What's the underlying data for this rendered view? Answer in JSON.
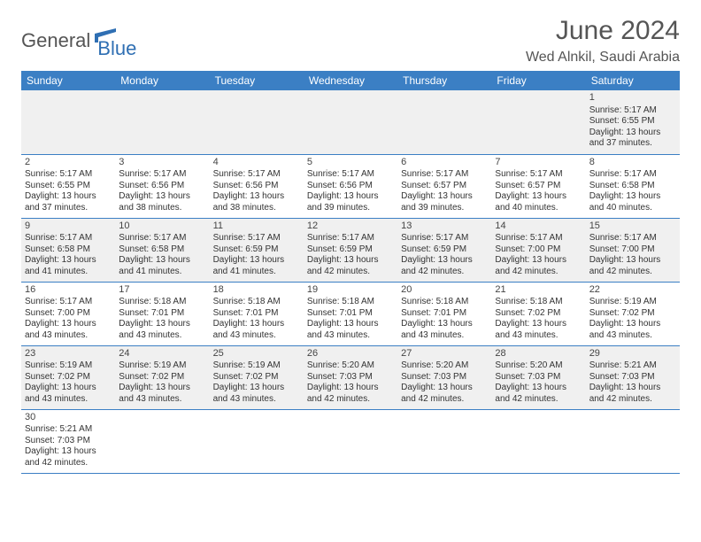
{
  "logo": {
    "part1": "General",
    "part2": "Blue"
  },
  "title": "June 2024",
  "subtitle": "Wed Alnkil, Saudi Arabia",
  "colors": {
    "header_bg": "#3b7fc4",
    "header_text": "#ffffff",
    "row_alt_bg": "#f0f0f0",
    "border": "#3b7fc4",
    "title_color": "#555555",
    "logo_blue": "#2f6fb3"
  },
  "typography": {
    "title_fontsize": 30,
    "subtitle_fontsize": 16,
    "header_fontsize": 12,
    "cell_fontsize": 10
  },
  "day_headers": [
    "Sunday",
    "Monday",
    "Tuesday",
    "Wednesday",
    "Thursday",
    "Friday",
    "Saturday"
  ],
  "weeks": [
    [
      null,
      null,
      null,
      null,
      null,
      null,
      {
        "n": "1",
        "sr": "Sunrise: 5:17 AM",
        "ss": "Sunset: 6:55 PM",
        "d1": "Daylight: 13 hours",
        "d2": "and 37 minutes."
      }
    ],
    [
      {
        "n": "2",
        "sr": "Sunrise: 5:17 AM",
        "ss": "Sunset: 6:55 PM",
        "d1": "Daylight: 13 hours",
        "d2": "and 37 minutes."
      },
      {
        "n": "3",
        "sr": "Sunrise: 5:17 AM",
        "ss": "Sunset: 6:56 PM",
        "d1": "Daylight: 13 hours",
        "d2": "and 38 minutes."
      },
      {
        "n": "4",
        "sr": "Sunrise: 5:17 AM",
        "ss": "Sunset: 6:56 PM",
        "d1": "Daylight: 13 hours",
        "d2": "and 38 minutes."
      },
      {
        "n": "5",
        "sr": "Sunrise: 5:17 AM",
        "ss": "Sunset: 6:56 PM",
        "d1": "Daylight: 13 hours",
        "d2": "and 39 minutes."
      },
      {
        "n": "6",
        "sr": "Sunrise: 5:17 AM",
        "ss": "Sunset: 6:57 PM",
        "d1": "Daylight: 13 hours",
        "d2": "and 39 minutes."
      },
      {
        "n": "7",
        "sr": "Sunrise: 5:17 AM",
        "ss": "Sunset: 6:57 PM",
        "d1": "Daylight: 13 hours",
        "d2": "and 40 minutes."
      },
      {
        "n": "8",
        "sr": "Sunrise: 5:17 AM",
        "ss": "Sunset: 6:58 PM",
        "d1": "Daylight: 13 hours",
        "d2": "and 40 minutes."
      }
    ],
    [
      {
        "n": "9",
        "sr": "Sunrise: 5:17 AM",
        "ss": "Sunset: 6:58 PM",
        "d1": "Daylight: 13 hours",
        "d2": "and 41 minutes."
      },
      {
        "n": "10",
        "sr": "Sunrise: 5:17 AM",
        "ss": "Sunset: 6:58 PM",
        "d1": "Daylight: 13 hours",
        "d2": "and 41 minutes."
      },
      {
        "n": "11",
        "sr": "Sunrise: 5:17 AM",
        "ss": "Sunset: 6:59 PM",
        "d1": "Daylight: 13 hours",
        "d2": "and 41 minutes."
      },
      {
        "n": "12",
        "sr": "Sunrise: 5:17 AM",
        "ss": "Sunset: 6:59 PM",
        "d1": "Daylight: 13 hours",
        "d2": "and 42 minutes."
      },
      {
        "n": "13",
        "sr": "Sunrise: 5:17 AM",
        "ss": "Sunset: 6:59 PM",
        "d1": "Daylight: 13 hours",
        "d2": "and 42 minutes."
      },
      {
        "n": "14",
        "sr": "Sunrise: 5:17 AM",
        "ss": "Sunset: 7:00 PM",
        "d1": "Daylight: 13 hours",
        "d2": "and 42 minutes."
      },
      {
        "n": "15",
        "sr": "Sunrise: 5:17 AM",
        "ss": "Sunset: 7:00 PM",
        "d1": "Daylight: 13 hours",
        "d2": "and 42 minutes."
      }
    ],
    [
      {
        "n": "16",
        "sr": "Sunrise: 5:17 AM",
        "ss": "Sunset: 7:00 PM",
        "d1": "Daylight: 13 hours",
        "d2": "and 43 minutes."
      },
      {
        "n": "17",
        "sr": "Sunrise: 5:18 AM",
        "ss": "Sunset: 7:01 PM",
        "d1": "Daylight: 13 hours",
        "d2": "and 43 minutes."
      },
      {
        "n": "18",
        "sr": "Sunrise: 5:18 AM",
        "ss": "Sunset: 7:01 PM",
        "d1": "Daylight: 13 hours",
        "d2": "and 43 minutes."
      },
      {
        "n": "19",
        "sr": "Sunrise: 5:18 AM",
        "ss": "Sunset: 7:01 PM",
        "d1": "Daylight: 13 hours",
        "d2": "and 43 minutes."
      },
      {
        "n": "20",
        "sr": "Sunrise: 5:18 AM",
        "ss": "Sunset: 7:01 PM",
        "d1": "Daylight: 13 hours",
        "d2": "and 43 minutes."
      },
      {
        "n": "21",
        "sr": "Sunrise: 5:18 AM",
        "ss": "Sunset: 7:02 PM",
        "d1": "Daylight: 13 hours",
        "d2": "and 43 minutes."
      },
      {
        "n": "22",
        "sr": "Sunrise: 5:19 AM",
        "ss": "Sunset: 7:02 PM",
        "d1": "Daylight: 13 hours",
        "d2": "and 43 minutes."
      }
    ],
    [
      {
        "n": "23",
        "sr": "Sunrise: 5:19 AM",
        "ss": "Sunset: 7:02 PM",
        "d1": "Daylight: 13 hours",
        "d2": "and 43 minutes."
      },
      {
        "n": "24",
        "sr": "Sunrise: 5:19 AM",
        "ss": "Sunset: 7:02 PM",
        "d1": "Daylight: 13 hours",
        "d2": "and 43 minutes."
      },
      {
        "n": "25",
        "sr": "Sunrise: 5:19 AM",
        "ss": "Sunset: 7:02 PM",
        "d1": "Daylight: 13 hours",
        "d2": "and 43 minutes."
      },
      {
        "n": "26",
        "sr": "Sunrise: 5:20 AM",
        "ss": "Sunset: 7:03 PM",
        "d1": "Daylight: 13 hours",
        "d2": "and 42 minutes."
      },
      {
        "n": "27",
        "sr": "Sunrise: 5:20 AM",
        "ss": "Sunset: 7:03 PM",
        "d1": "Daylight: 13 hours",
        "d2": "and 42 minutes."
      },
      {
        "n": "28",
        "sr": "Sunrise: 5:20 AM",
        "ss": "Sunset: 7:03 PM",
        "d1": "Daylight: 13 hours",
        "d2": "and 42 minutes."
      },
      {
        "n": "29",
        "sr": "Sunrise: 5:21 AM",
        "ss": "Sunset: 7:03 PM",
        "d1": "Daylight: 13 hours",
        "d2": "and 42 minutes."
      }
    ],
    [
      {
        "n": "30",
        "sr": "Sunrise: 5:21 AM",
        "ss": "Sunset: 7:03 PM",
        "d1": "Daylight: 13 hours",
        "d2": "and 42 minutes."
      },
      null,
      null,
      null,
      null,
      null,
      null
    ]
  ]
}
